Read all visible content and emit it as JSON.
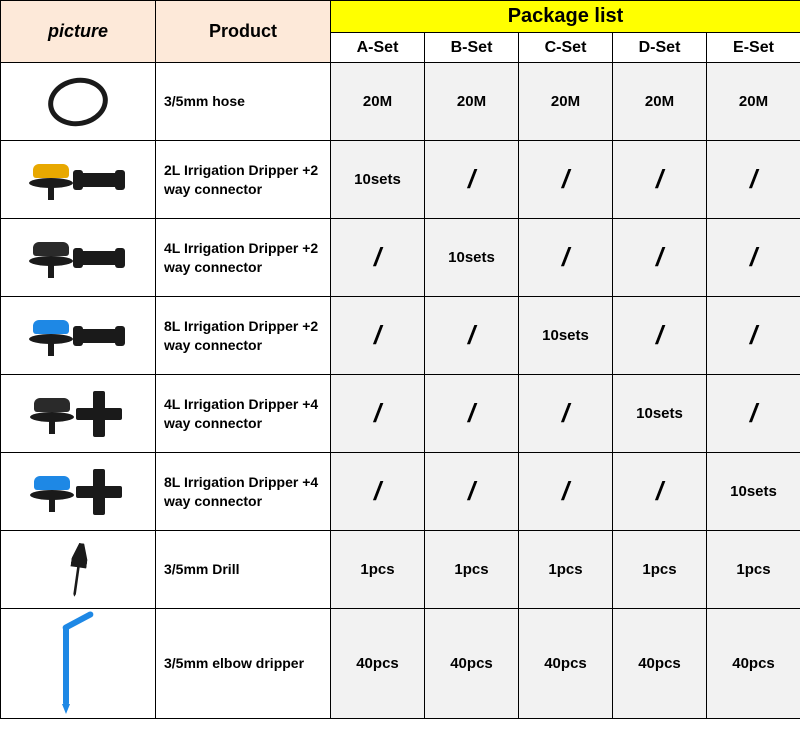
{
  "headers": {
    "picture": "picture",
    "product": "Product",
    "package_list": "Package list",
    "sets": [
      "A-Set",
      "B-Set",
      "C-Set",
      "D-Set",
      "E-Set"
    ]
  },
  "rows": [
    {
      "product": "3/5mm hose",
      "values": [
        "20M",
        "20M",
        "20M",
        "20M",
        "20M"
      ],
      "icon": "hose",
      "tall": false
    },
    {
      "product": "2L Irrigation Dripper +2 way connector",
      "values": [
        "10sets",
        "/",
        "/",
        "/",
        "/"
      ],
      "icon": "dripper-yellow-2way",
      "tall": false
    },
    {
      "product": "4L Irrigation Dripper +2 way connector",
      "values": [
        "/",
        "10sets",
        "/",
        "/",
        "/"
      ],
      "icon": "dripper-black-2way",
      "tall": false
    },
    {
      "product": "8L Irrigation Dripper +2 way connector",
      "values": [
        "/",
        "/",
        "10sets",
        "/",
        "/"
      ],
      "icon": "dripper-blue-2way",
      "tall": false
    },
    {
      "product": "4L Irrigation Dripper +4 way connector",
      "values": [
        "/",
        "/",
        "/",
        "10sets",
        "/"
      ],
      "icon": "dripper-black-4way",
      "tall": false
    },
    {
      "product": "8L Irrigation Dripper +4 way connector",
      "values": [
        "/",
        "/",
        "/",
        "/",
        "10sets"
      ],
      "icon": "dripper-blue-4way",
      "tall": false
    },
    {
      "product": "3/5mm Drill",
      "values": [
        "1pcs",
        "1pcs",
        "1pcs",
        "1pcs",
        "1pcs"
      ],
      "icon": "drill",
      "tall": false
    },
    {
      "product": "3/5mm elbow dripper",
      "values": [
        "40pcs",
        "40pcs",
        "40pcs",
        "40pcs",
        "40pcs"
      ],
      "icon": "elbow",
      "tall": true
    }
  ],
  "colors": {
    "header_bg": "#fde9d9",
    "package_bg": "#ffff00",
    "value_bg": "#f2f2f2",
    "border": "#000000",
    "cap_yellow": "#e8a800",
    "cap_black": "#2a2a2a",
    "cap_blue": "#1e88e5"
  }
}
